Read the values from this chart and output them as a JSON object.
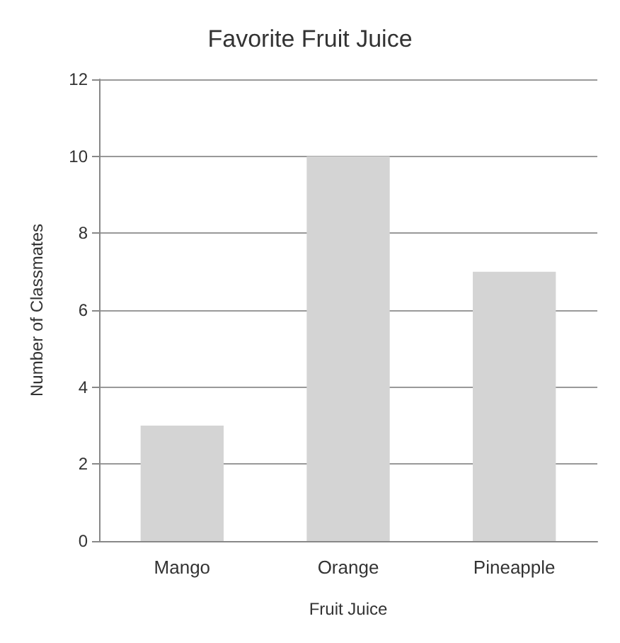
{
  "chart_data": {
    "type": "bar",
    "title": "Favorite Fruit Juice",
    "xlabel": "Fruit Juice",
    "ylabel": "Number of Classmates",
    "categories": [
      "Mango",
      "Orange",
      "Pineapple"
    ],
    "values": [
      3,
      10,
      7
    ],
    "color": "#d4d4d4",
    "ylim": [
      0,
      12
    ],
    "yticks": [
      0,
      2,
      4,
      6,
      8,
      10,
      12
    ],
    "grid": "y"
  }
}
